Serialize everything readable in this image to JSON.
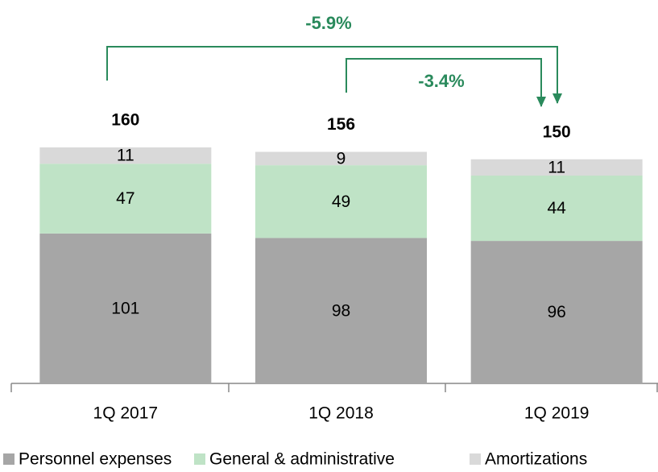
{
  "chart_data": {
    "type": "stacked_bar",
    "categories": [
      "1Q 2017",
      "1Q 2018",
      "1Q 2019"
    ],
    "series": [
      {
        "name": "Personnel expenses",
        "color": "#a6a6a6",
        "values": [
          101,
          98,
          96
        ]
      },
      {
        "name": "General & administrative",
        "color": "#bfe3c6",
        "values": [
          47,
          49,
          44
        ]
      },
      {
        "name": "Amortizations",
        "color": "#d9d9d9",
        "values": [
          11,
          9,
          11
        ]
      }
    ],
    "totals": [
      160,
      156,
      150
    ],
    "annotations": [
      "-5.9%",
      "-3.4%"
    ]
  }
}
